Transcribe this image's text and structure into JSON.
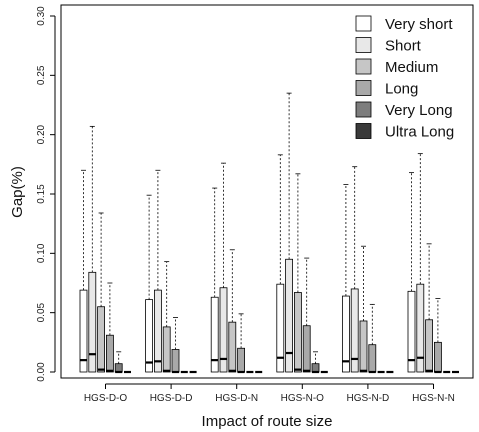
{
  "chart_data": {
    "type": "boxplot",
    "xlabel": "Impact of route size",
    "ylabel": "Gap(%)",
    "ylim": [
      0,
      0.3
    ],
    "yticks": [
      "0.00",
      "0.05",
      "0.10",
      "0.15",
      "0.20",
      "0.25",
      "0.30"
    ],
    "ytick_values": [
      0,
      0.05,
      0.1,
      0.15,
      0.2,
      0.25,
      0.3
    ],
    "legend_placement": "top-right",
    "categories": [
      "HGS-D-O",
      "HGS-D-D",
      "HGS-D-N",
      "HGS-N-O",
      "HGS-N-D",
      "HGS-N-N"
    ],
    "series": [
      {
        "name": "Very short",
        "color": "#ffffff",
        "boxes": [
          {
            "min": 0,
            "q1": 0,
            "median": 0.01,
            "q3": 0.069,
            "max": 0.17
          },
          {
            "min": 0,
            "q1": 0,
            "median": 0.008,
            "q3": 0.061,
            "max": 0.149
          },
          {
            "min": 0,
            "q1": 0,
            "median": 0.01,
            "q3": 0.063,
            "max": 0.155
          },
          {
            "min": 0,
            "q1": 0,
            "median": 0.012,
            "q3": 0.074,
            "max": 0.183
          },
          {
            "min": 0,
            "q1": 0,
            "median": 0.009,
            "q3": 0.064,
            "max": 0.158
          },
          {
            "min": 0,
            "q1": 0,
            "median": 0.01,
            "q3": 0.068,
            "max": 0.168
          }
        ]
      },
      {
        "name": "Short",
        "color": "#e8e8e8",
        "boxes": [
          {
            "min": 0,
            "q1": 0,
            "median": 0.015,
            "q3": 0.084,
            "max": 0.207
          },
          {
            "min": 0,
            "q1": 0,
            "median": 0.009,
            "q3": 0.069,
            "max": 0.17
          },
          {
            "min": 0,
            "q1": 0,
            "median": 0.011,
            "q3": 0.071,
            "max": 0.176
          },
          {
            "min": 0,
            "q1": 0,
            "median": 0.016,
            "q3": 0.095,
            "max": 0.235
          },
          {
            "min": 0,
            "q1": 0,
            "median": 0.011,
            "q3": 0.07,
            "max": 0.173
          },
          {
            "min": 0,
            "q1": 0,
            "median": 0.012,
            "q3": 0.074,
            "max": 0.184
          }
        ]
      },
      {
        "name": "Medium",
        "color": "#c6c6c6",
        "boxes": [
          {
            "min": 0,
            "q1": 0,
            "median": 0.002,
            "q3": 0.055,
            "max": 0.134
          },
          {
            "min": 0,
            "q1": 0,
            "median": 0.001,
            "q3": 0.038,
            "max": 0.093
          },
          {
            "min": 0,
            "q1": 0,
            "median": 0.001,
            "q3": 0.042,
            "max": 0.103
          },
          {
            "min": 0,
            "q1": 0,
            "median": 0.002,
            "q3": 0.067,
            "max": 0.167
          },
          {
            "min": 0,
            "q1": 0,
            "median": 0.001,
            "q3": 0.043,
            "max": 0.106
          },
          {
            "min": 0,
            "q1": 0,
            "median": 0.001,
            "q3": 0.044,
            "max": 0.108
          }
        ]
      },
      {
        "name": "Long",
        "color": "#a9a9a9",
        "boxes": [
          {
            "min": 0,
            "q1": 0,
            "median": 0.001,
            "q3": 0.031,
            "max": 0.075
          },
          {
            "min": 0,
            "q1": 0,
            "median": 0.0,
            "q3": 0.019,
            "max": 0.046
          },
          {
            "min": 0,
            "q1": 0,
            "median": 0.0,
            "q3": 0.02,
            "max": 0.049
          },
          {
            "min": 0,
            "q1": 0,
            "median": 0.001,
            "q3": 0.039,
            "max": 0.096
          },
          {
            "min": 0,
            "q1": 0,
            "median": 0.0,
            "q3": 0.023,
            "max": 0.057
          },
          {
            "min": 0,
            "q1": 0,
            "median": 0.0,
            "q3": 0.025,
            "max": 0.062
          }
        ]
      },
      {
        "name": "Very Long",
        "color": "#7d7d7d",
        "boxes": [
          {
            "min": 0,
            "q1": 0,
            "median": 0.0,
            "q3": 0.007,
            "max": 0.017
          },
          {
            "min": 0,
            "q1": 0,
            "median": 0.0,
            "q3": 0.0,
            "max": 0.0
          },
          {
            "min": 0,
            "q1": 0,
            "median": 0.0,
            "q3": 0.0,
            "max": 0.0
          },
          {
            "min": 0,
            "q1": 0,
            "median": 0.0,
            "q3": 0.007,
            "max": 0.017
          },
          {
            "min": 0,
            "q1": 0,
            "median": 0.0,
            "q3": 0.0,
            "max": 0.0
          },
          {
            "min": 0,
            "q1": 0,
            "median": 0.0,
            "q3": 0.0,
            "max": 0.0
          }
        ]
      },
      {
        "name": "Ultra Long",
        "color": "#3a3a3a",
        "boxes": [
          {
            "min": 0,
            "q1": 0,
            "median": 0.0,
            "q3": 0.0,
            "max": 0.0
          },
          {
            "min": 0,
            "q1": 0,
            "median": 0.0,
            "q3": 0.0,
            "max": 0.0
          },
          {
            "min": 0,
            "q1": 0,
            "median": 0.0,
            "q3": 0.0,
            "max": 0.0
          },
          {
            "min": 0,
            "q1": 0,
            "median": 0.0,
            "q3": 0.0,
            "max": 0.0
          },
          {
            "min": 0,
            "q1": 0,
            "median": 0.0,
            "q3": 0.0,
            "max": 0.0
          },
          {
            "min": 0,
            "q1": 0,
            "median": 0.0,
            "q3": 0.0,
            "max": 0.0
          }
        ]
      }
    ]
  }
}
